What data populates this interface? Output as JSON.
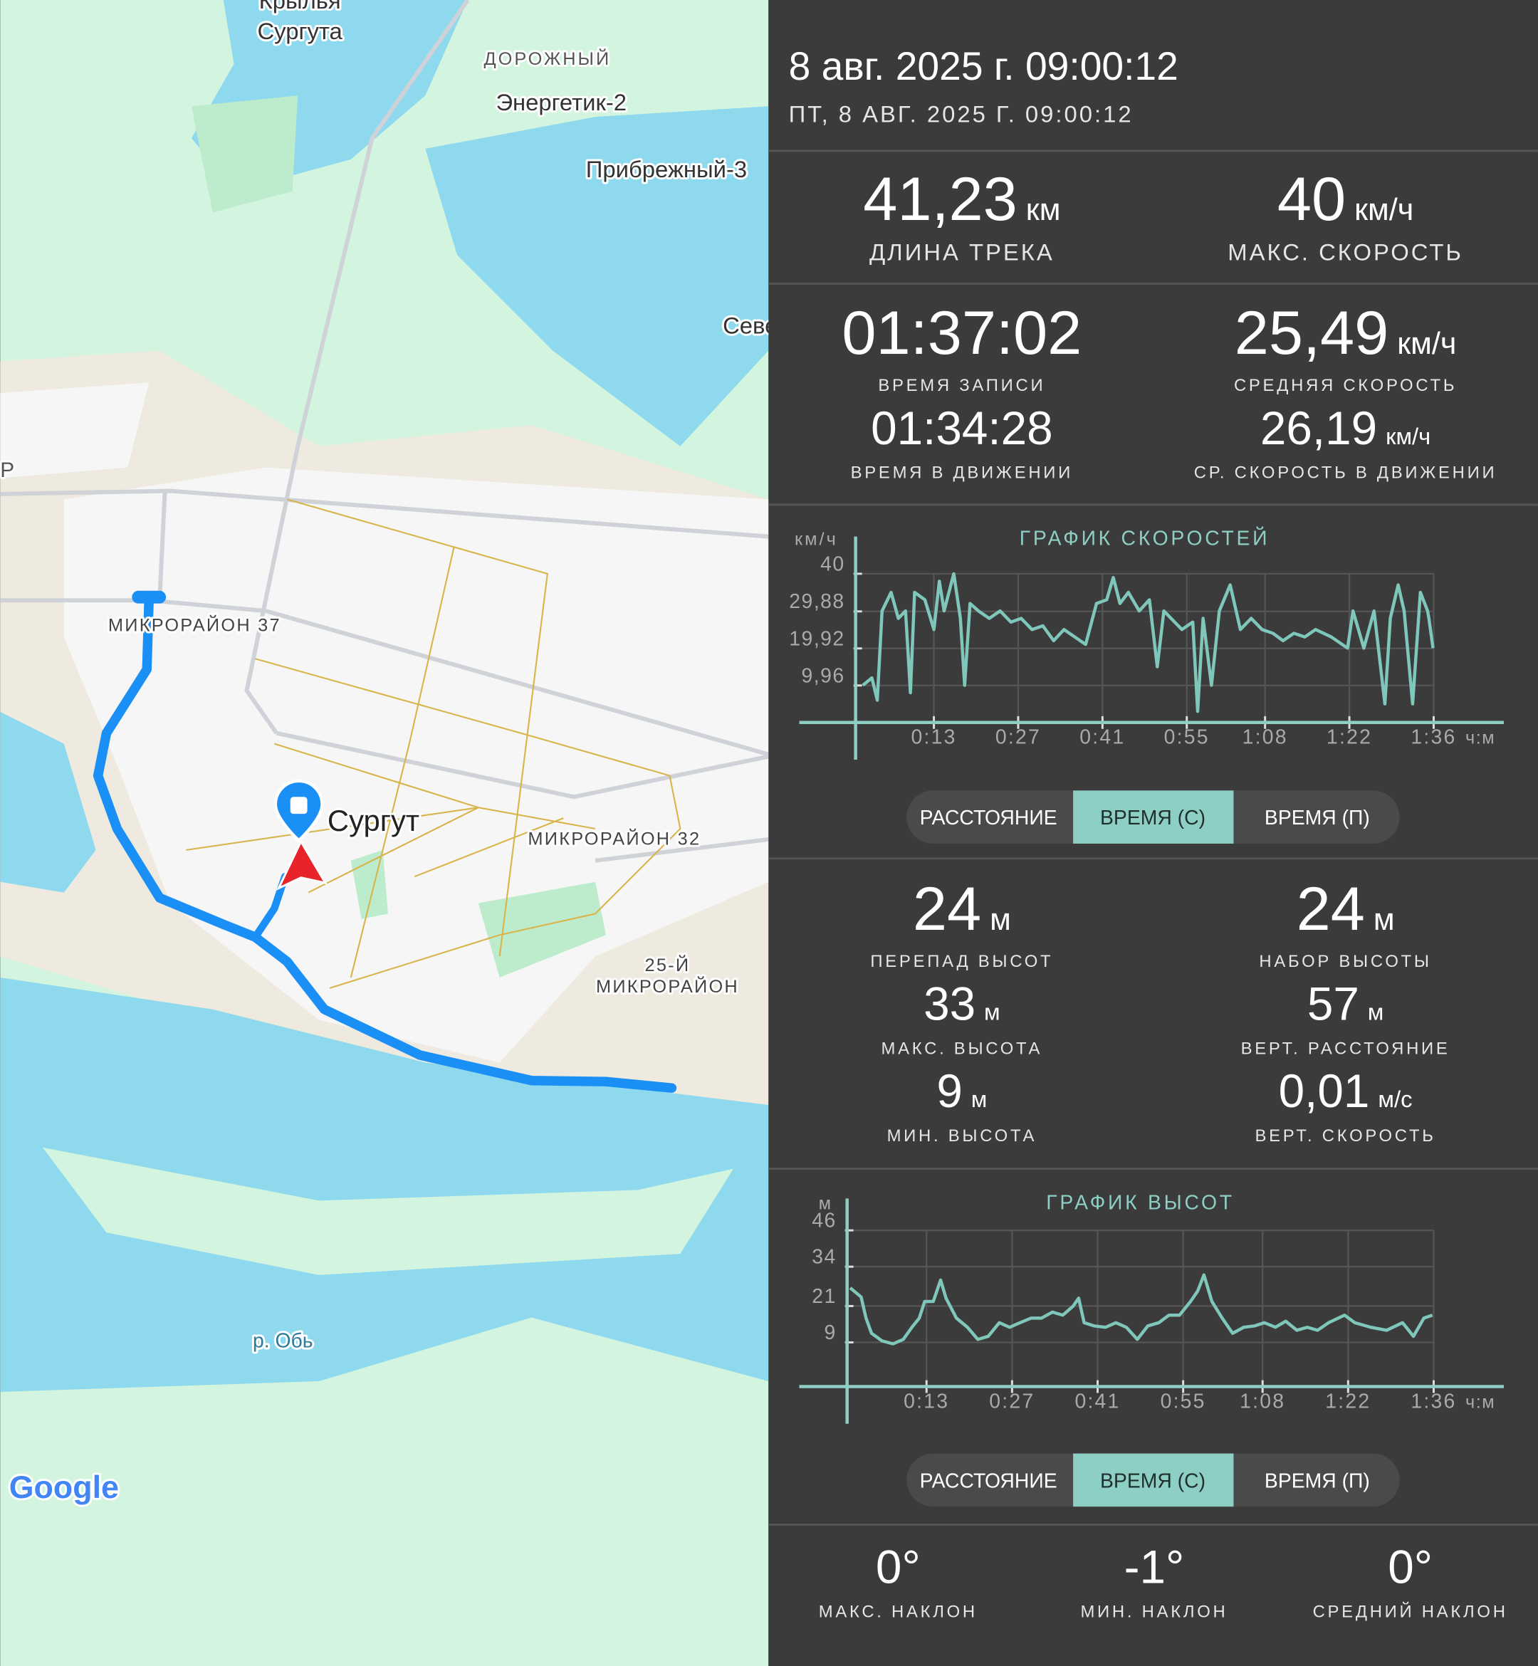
{
  "map": {
    "labels": [
      "Крылья",
      "Сургута",
      "ДОРОЖНЫЙ",
      "Энергетик-2",
      "Прибрежный-3",
      "Севе",
      "Р",
      "МИКРОРАЙОН 37",
      "Сургут",
      "МИКРОРАЙОН 32",
      "25-Й",
      "МИКРОРАЙОН",
      "р. Обь",
      "Google"
    ]
  },
  "header": {
    "title": "8 авг. 2025 г. 09:00:12",
    "subtitle": "ПТ, 8 АВГ. 2025 Г. 09:00:12"
  },
  "track_stats": [
    {
      "value": "41,23",
      "unit": "км",
      "label": "ДЛИНА ТРЕКА"
    },
    {
      "value": "40",
      "unit": "км/ч",
      "label": "МАКС. СКОРОСТЬ"
    },
    {
      "value": "01:37:02",
      "label": "ВРЕМЯ ЗАПИСИ"
    },
    {
      "value": "25,49",
      "unit": "км/ч",
      "label": "СРЕДНЯЯ СКОРОСТЬ"
    },
    {
      "value": "01:34:28",
      "label": "ВРЕМЯ В ДВИЖЕНИИ"
    },
    {
      "value": "26,19",
      "unit": "км/ч",
      "label": "СР. СКОРОСТЬ В ДВИЖЕНИИ"
    }
  ],
  "elevation_stats": [
    {
      "value": "24",
      "unit": "м",
      "label": "ПЕРЕПАД ВЫСОТ"
    },
    {
      "value": "24",
      "unit": "м",
      "label": "НАБОР ВЫСОТЫ"
    },
    {
      "value": "33",
      "unit": "м",
      "label": "МАКС. ВЫСОТА"
    },
    {
      "value": "57",
      "unit": "м",
      "label": "ВЕРТ. РАССТОЯНИЕ"
    },
    {
      "value": "9",
      "unit": "м",
      "label": "МИН. ВЫСОТА"
    },
    {
      "value": "0,01",
      "unit": "м/с",
      "label": "ВЕРТ. СКОРОСТЬ"
    }
  ],
  "slope_stats": [
    {
      "value": "0°",
      "label": "МАКС. НАКЛОН"
    },
    {
      "value": "-1°",
      "label": "МИН. НАКЛОН"
    },
    {
      "value": "0°",
      "label": "СРЕДНИЙ НАКЛОН"
    }
  ],
  "chart_toggles": [
    {
      "options": [
        "РАССТОЯНИЕ",
        "ВРЕМЯ (С)",
        "ВРЕМЯ (П)"
      ],
      "selected": 1
    },
    {
      "options": [
        "РАССТОЯНИЕ",
        "ВРЕМЯ (С)",
        "ВРЕМЯ (П)"
      ],
      "selected": 1
    }
  ],
  "chart_data": [
    {
      "type": "line",
      "title": "ГРАФИК СКОРОСТЕЙ",
      "y_unit": "км/ч",
      "x_unit": "ч:м",
      "color": "#7fc6bb",
      "grid": true,
      "xlim": [
        0,
        96
      ],
      "ylim": [
        0,
        40
      ],
      "xticks": [
        {
          "value": 13,
          "label": "0:13"
        },
        {
          "value": 27,
          "label": "0:27"
        },
        {
          "value": 41,
          "label": "0:41"
        },
        {
          "value": 55,
          "label": "0:55"
        },
        {
          "value": 68,
          "label": "1:08"
        },
        {
          "value": 82,
          "label": "1:22"
        },
        {
          "value": 96,
          "label": "1:36"
        }
      ],
      "yticks": [
        {
          "value": 9.96,
          "label": "9,96"
        },
        {
          "value": 19.92,
          "label": "19,92"
        },
        {
          "value": 29.88,
          "label": "29,88"
        },
        40
      ],
      "x": [
        1.2,
        2.7,
        3.6,
        4.4,
        5.9,
        7.1,
        8.3,
        9.1,
        9.8,
        11.5,
        13.0,
        13.9,
        14.7,
        16.3,
        17.4,
        18.1,
        19.0,
        20.4,
        22.2,
        24.0,
        25.8,
        27.5,
        29.3,
        31.1,
        32.9,
        34.6,
        36.4,
        38.2,
        40.0,
        41.7,
        42.8,
        43.9,
        45.3,
        47.1,
        48.8,
        50.1,
        51.2,
        52.4,
        54.2,
        56.0,
        56.8,
        57.7,
        59.1,
        60.4,
        62.2,
        63.9,
        65.7,
        67.5,
        69.3,
        71.0,
        72.8,
        74.6,
        76.4,
        79.0,
        81.7,
        82.6,
        84.4,
        86.1,
        87.9,
        88.8,
        90.1,
        91.1,
        92.5,
        93.8,
        95.0,
        95.2,
        95.9
      ],
      "values": [
        10,
        12,
        6,
        30,
        35,
        28,
        30,
        8,
        35,
        33,
        25,
        38,
        30,
        40,
        28,
        10,
        32,
        30,
        28,
        30,
        27,
        28,
        25,
        26,
        22,
        25,
        23,
        21,
        32,
        33,
        39,
        32,
        35,
        30,
        33,
        15,
        30,
        28,
        25,
        27,
        3,
        28,
        10,
        30,
        37,
        25,
        28,
        25,
        24,
        22,
        24,
        23,
        25,
        23,
        20,
        30,
        20,
        30,
        5,
        28,
        37,
        30,
        5,
        35,
        30,
        28,
        20
      ]
    },
    {
      "type": "line",
      "title": "ГРАФИК ВЫСОТ",
      "y_unit": "м",
      "x_unit": "ч:м",
      "color": "#7fc6bb",
      "grid": true,
      "xlim": [
        0,
        96
      ],
      "ylim": [
        -5.6,
        46
      ],
      "xticks": [
        {
          "value": 13,
          "label": "0:13"
        },
        {
          "value": 27,
          "label": "0:27"
        },
        {
          "value": 41,
          "label": "0:41"
        },
        {
          "value": 55,
          "label": "0:55"
        },
        {
          "value": 68,
          "label": "1:08"
        },
        {
          "value": 82,
          "label": "1:22"
        },
        {
          "value": 96,
          "label": "1:36"
        }
      ],
      "yticks": [
        9,
        21,
        34,
        46
      ],
      "x": [
        0.5,
        2.3,
        3.1,
        4.0,
        5.7,
        7.5,
        9.2,
        10.6,
        11.8,
        12.7,
        14.1,
        15.3,
        16.2,
        17.9,
        19.7,
        21.4,
        23.1,
        24.9,
        26.6,
        28.3,
        30.1,
        31.8,
        33.6,
        35.3,
        37.0,
        37.9,
        38.8,
        40.5,
        42.3,
        44.0,
        45.7,
        47.5,
        49.2,
        51.0,
        52.7,
        54.4,
        56.2,
        57.4,
        58.4,
        59.7,
        61.4,
        63.1,
        64.9,
        66.6,
        68.3,
        70.1,
        71.8,
        73.6,
        75.3,
        77.0,
        78.8,
        81.4,
        83.1,
        85.7,
        88.3,
        90.9,
        92.7,
        94.4,
        95.8
      ],
      "values": [
        27,
        24,
        17,
        12,
        9.5,
        8.5,
        10,
        14,
        17,
        22.5,
        22.5,
        29.6,
        23.6,
        17,
        14,
        10,
        11,
        15.5,
        14,
        15.5,
        17,
        17,
        19,
        18,
        21,
        23.6,
        15.5,
        14.4,
        14,
        15.5,
        14,
        10,
        14.4,
        15.5,
        18,
        18,
        22.5,
        26,
        31.3,
        22.5,
        17,
        12,
        14,
        14.4,
        15.5,
        14,
        16,
        13,
        14,
        13,
        15.5,
        18,
        15.5,
        14,
        13,
        15.5,
        11,
        17,
        18
      ]
    }
  ]
}
